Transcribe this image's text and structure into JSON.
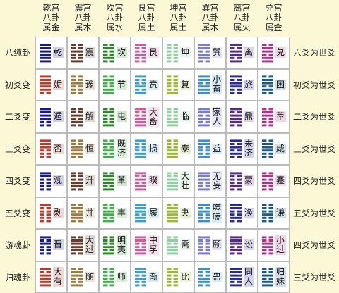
{
  "header": {
    "columns": [
      {
        "palace": "乾宫",
        "trigram": "八卦",
        "element": "属金"
      },
      {
        "palace": "震宫",
        "trigram": "八卦",
        "element": "属木"
      },
      {
        "palace": "坎宫",
        "trigram": "八卦",
        "element": "属水"
      },
      {
        "palace": "艮宫",
        "trigram": "八卦",
        "element": "属土"
      },
      {
        "palace": "坤宫",
        "trigram": "八卦",
        "element": "属土"
      },
      {
        "palace": "巽宫",
        "trigram": "八卦",
        "element": "属木"
      },
      {
        "palace": "离宫",
        "trigram": "八卦",
        "element": "属火"
      },
      {
        "palace": "兑宫",
        "trigram": "八卦",
        "element": "属金"
      }
    ]
  },
  "rows": [
    {
      "label": "八纯卦",
      "cells": [
        "乾",
        "震",
        "坎",
        "艮",
        "坤",
        "巽",
        "离",
        "兑"
      ],
      "note": "六爻为世爻"
    },
    {
      "label": "初爻变",
      "cells": [
        "姤",
        "豫",
        "节",
        "贲",
        "复",
        "小畜",
        "旅",
        "困"
      ],
      "note": "初爻为世爻"
    },
    {
      "label": "二爻变",
      "cells": [
        "遁",
        "解",
        "屯",
        "大畜",
        "临",
        "家人",
        "鼎",
        "萃"
      ],
      "note": "二爻为世爻"
    },
    {
      "label": "三爻变",
      "cells": [
        "否",
        "恒",
        "既济",
        "损",
        "泰",
        "益",
        "未济",
        "咸"
      ],
      "note": "三爻为世爻"
    },
    {
      "label": "四爻变",
      "cells": [
        "观",
        "升",
        "革",
        "睽",
        "大壮",
        "无妄",
        "蒙",
        "蹇"
      ],
      "note": "四爻为世爻"
    },
    {
      "label": "五爻变",
      "cells": [
        "剥",
        "井",
        "丰",
        "履",
        "夬",
        "噬嗑",
        "涣",
        "谦"
      ],
      "note": "五爻为世爻"
    },
    {
      "label": "游魂卦",
      "cells": [
        "晋",
        "大过",
        "明夷",
        "中孚",
        "需",
        "颐",
        "讼",
        "小过"
      ],
      "note": "四爻为世爻"
    },
    {
      "label": "归魂卦",
      "cells": [
        "大有",
        "随",
        "师",
        "渐",
        "比",
        "蛊",
        "同人",
        "归妹"
      ],
      "note": "三爻为世爻"
    }
  ]
}
